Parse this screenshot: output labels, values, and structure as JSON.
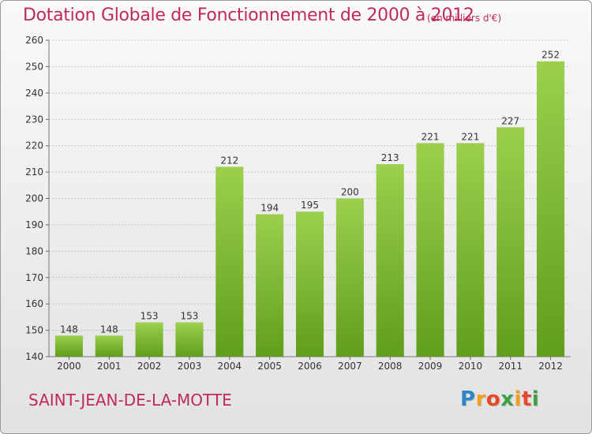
{
  "header": {
    "title": "Dotation Globale de Fonctionnement de 2000 à 2012",
    "subtitle": "(en milliers d'€)"
  },
  "footer": {
    "commune": "SAINT-JEAN-DE-LA-MOTTE",
    "logo_letters": [
      "P",
      "r",
      "o",
      "x",
      "i",
      "t",
      "i"
    ],
    "logo_colors": [
      "#2e86c8",
      "#f0a01e",
      "#e8462a",
      "#3aa04a",
      "#f0a01e",
      "#e8462a",
      "#3aa04a"
    ]
  },
  "colors": {
    "title": "#c0295c",
    "bar_light": "#9ccf4e",
    "bar_dark": "#5f9e1c",
    "grid": "#c4c4c4",
    "text": "#333333"
  },
  "chart_data": {
    "type": "bar",
    "categories": [
      "2000",
      "2001",
      "2002",
      "2003",
      "2004",
      "2005",
      "2006",
      "2007",
      "2008",
      "2009",
      "2010",
      "2011",
      "2012"
    ],
    "values": [
      148,
      148,
      153,
      153,
      212,
      194,
      195,
      200,
      213,
      221,
      221,
      227,
      252
    ],
    "value_labels": [
      "148",
      "148",
      "153",
      "153",
      "212",
      "194",
      "195",
      "200",
      "213",
      "221",
      "221",
      "227",
      "252"
    ],
    "title": "Dotation Globale de Fonctionnement de 2000 à 2012",
    "subtitle": "(en milliers d'€)",
    "ylim": [
      140,
      260
    ],
    "yticks": [
      140,
      150,
      160,
      170,
      180,
      190,
      200,
      210,
      220,
      230,
      240,
      250,
      260
    ],
    "grid": true,
    "legend": "none"
  }
}
